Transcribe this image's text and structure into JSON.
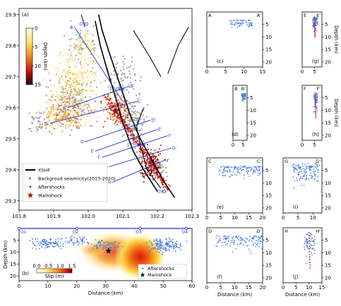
{
  "chart_data": [
    {
      "id": "a",
      "type": "scatter",
      "panel_label": "(a)",
      "xlim": [
        101.8,
        102.3
      ],
      "ylim": [
        29.27,
        29.92
      ],
      "xticks": [
        "101.8",
        "101.9",
        "102.0",
        "102.1",
        "102.2",
        "102.3"
      ],
      "yticks": [
        "29.3",
        "29.4",
        "29.5",
        "29.6",
        "29.7",
        "29.8",
        "29.9"
      ],
      "colorbar": {
        "label": "Depth (km)",
        "ticks": [
          "0",
          "5",
          "10",
          "15"
        ],
        "range": [
          0,
          15
        ]
      },
      "legend": [
        {
          "label": "XSHF",
          "style": "thick black line"
        },
        {
          "label": "Backgroud seismicity(2013-2020)",
          "style": "grey square"
        },
        {
          "label": "Aftershocks",
          "style": "small red dot"
        },
        {
          "label": "Mainshock",
          "style": "red star"
        }
      ],
      "legend_position": "bottom-left",
      "mainshock": {
        "lon": 102.08,
        "lat": 29.59
      },
      "profiles": [
        {
          "start": "A",
          "end": "A'",
          "start_lonlat": [
            101.96,
            29.86
          ],
          "end_lonlat": [
            102.1,
            29.62
          ]
        },
        {
          "start": "B",
          "end": "B'",
          "start_lonlat": [
            101.94,
            29.6
          ],
          "end_lonlat": [
            102.12,
            29.67
          ]
        },
        {
          "start": "C",
          "end": "C'",
          "start_lonlat": [
            101.89,
            29.55
          ],
          "end_lonlat": [
            102.14,
            29.62
          ]
        },
        {
          "start": "D",
          "end": "D'",
          "start_lonlat": [
            101.99,
            29.49
          ],
          "end_lonlat": [
            102.18,
            29.56
          ]
        },
        {
          "start": "E",
          "end": "E'",
          "start_lonlat": [
            102.02,
            29.46
          ],
          "end_lonlat": [
            102.2,
            29.53
          ]
        },
        {
          "start": "F",
          "end": "F'",
          "start_lonlat": [
            102.04,
            29.44
          ],
          "end_lonlat": [
            102.23,
            29.51
          ]
        },
        {
          "start": "G",
          "end": "G'",
          "start_lonlat": [
            102.06,
            29.41
          ],
          "end_lonlat": [
            102.24,
            29.47
          ]
        },
        {
          "start": "H",
          "end": "H'",
          "start_lonlat": [
            102.07,
            29.36
          ],
          "end_lonlat": [
            102.22,
            29.43
          ]
        }
      ],
      "points": [
        "O1",
        "O2",
        "O3",
        "O4"
      ]
    },
    {
      "id": "b",
      "type": "heatmap",
      "panel_label": "(b)",
      "xlabel": "Distance (km)",
      "ylabel": "Depth (km)",
      "xlim": [
        0,
        60
      ],
      "ylim": [
        0,
        22
      ],
      "xticks": [
        "0",
        "10",
        "20",
        "30",
        "40",
        "50",
        "60"
      ],
      "yticks": [
        "5",
        "10",
        "15",
        "20"
      ],
      "colorbar": {
        "label": "Slip (m)",
        "ticks": [
          "0.0",
          "0.5",
          "1.0",
          "1.5"
        ],
        "range": [
          0,
          1.5
        ]
      },
      "legend": [
        "Aftershocks",
        "Mainshock"
      ],
      "legend_position": "bottom-right",
      "top_labels": [
        "O1",
        "O2",
        "O3",
        "O4"
      ],
      "top_label_positions_km": [
        0,
        20,
        42,
        58
      ],
      "mainshock": {
        "distance": 31,
        "depth": 9.5
      },
      "slip_patches": [
        {
          "center": [
            33,
            10
          ],
          "radius": [
            12,
            9
          ],
          "peak": 1.2
        },
        {
          "center": [
            42,
            12
          ],
          "radius": [
            9,
            10
          ],
          "peak": 1.5
        },
        {
          "center": [
            25,
            9
          ],
          "radius": [
            5,
            3
          ],
          "peak": 0.5
        }
      ]
    },
    {
      "id": "c",
      "type": "scatter",
      "panel_label": "(c)",
      "start": "A",
      "end": "A'",
      "xlim": [
        0,
        15
      ],
      "xticks": [
        "0",
        "5",
        "10",
        "15"
      ],
      "ylim": [
        0,
        22
      ],
      "yticks": [
        "5",
        "10",
        "15",
        "20"
      ],
      "cluster": {
        "x": [
          6,
          12
        ],
        "depth": [
          3,
          7
        ]
      }
    },
    {
      "id": "d",
      "type": "scatter",
      "panel_label": "(d)",
      "start": "B",
      "end": "B'",
      "xlim": [
        0,
        7
      ],
      "xticks": [
        "0",
        "5"
      ],
      "ylim": [
        0,
        22
      ],
      "yticks": [
        "5",
        "10",
        "15",
        "20"
      ],
      "cluster": {
        "x": [
          4,
          6
        ],
        "depth": [
          3,
          7
        ]
      }
    },
    {
      "id": "e",
      "type": "scatter",
      "panel_label": "(e)",
      "start": "C",
      "end": "C'",
      "xlim": [
        0,
        20
      ],
      "xticks": [
        "0",
        "5",
        "10",
        "15",
        "20"
      ],
      "ylim": [
        0,
        22
      ],
      "yticks": [
        "5",
        "10",
        "15",
        "20"
      ],
      "cluster": {
        "x": [
          4,
          20
        ],
        "depth": [
          3,
          9
        ]
      }
    },
    {
      "id": "f",
      "type": "scatter",
      "panel_label": "(f)",
      "start": "D",
      "end": "D'",
      "xlim": [
        0,
        20
      ],
      "xticks": [
        "0",
        "5",
        "10",
        "15",
        "20"
      ],
      "ylim": [
        0,
        22
      ],
      "yticks": [
        "5",
        "10",
        "15",
        "20"
      ],
      "cluster": {
        "x": [
          3,
          20
        ],
        "depth": [
          3,
          11
        ]
      }
    },
    {
      "id": "g",
      "type": "scatter",
      "panel_label": "(g)",
      "start": "E",
      "end": "E'",
      "xlim": [
        0,
        8
      ],
      "xticks": [
        "0",
        "5"
      ],
      "ylim": [
        0,
        22
      ],
      "yticks": [
        "5",
        "10",
        "15",
        "20"
      ],
      "ylabel": "Depth (km)",
      "cluster": {
        "x": [
          4,
          6
        ],
        "depth": [
          2,
          10
        ]
      }
    },
    {
      "id": "h",
      "type": "scatter",
      "panel_label": "(h)",
      "start": "F",
      "end": "F'",
      "xlim": [
        0,
        8
      ],
      "xticks": [
        "0",
        "5"
      ],
      "ylim": [
        0,
        22
      ],
      "yticks": [
        "5",
        "10",
        "15",
        "20"
      ],
      "ylabel": "Depth (km)",
      "cluster": {
        "x": [
          4.5,
          6
        ],
        "depth": [
          3,
          13
        ]
      }
    },
    {
      "id": "i",
      "type": "scatter",
      "panel_label": "(i)",
      "start": "G",
      "end": "G'",
      "xlim": [
        0,
        13
      ],
      "xticks": [
        "0",
        "5",
        "10"
      ],
      "ylim": [
        0,
        22
      ],
      "yticks": [
        "5",
        "10",
        "15",
        "20"
      ],
      "cluster": {
        "x": [
          3,
          12
        ],
        "depth": [
          2,
          13
        ]
      }
    },
    {
      "id": "j",
      "type": "scatter",
      "panel_label": "(j)",
      "start": "H",
      "end": "H'",
      "xlim": [
        0,
        15
      ],
      "xticks": [
        "0",
        "5",
        "10",
        "15"
      ],
      "ylim": [
        0,
        22
      ],
      "yticks": [
        "5",
        "10",
        "15",
        "20"
      ],
      "xlabel": "Distance (km)",
      "cluster": {
        "x": [
          8,
          12
        ],
        "depth": [
          2,
          16
        ]
      }
    }
  ],
  "shared_labels": {
    "bottom_xlabel": "Distance (km)"
  }
}
